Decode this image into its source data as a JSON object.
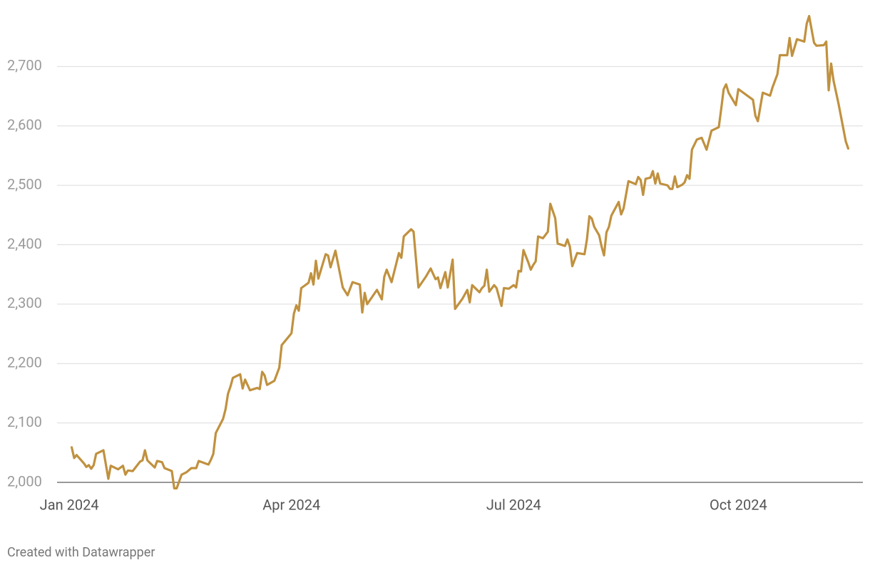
{
  "chart_data": {
    "type": "line",
    "credit": "Created with Datawrapper",
    "color": "#c0913f",
    "grid": true,
    "xlim": [
      -5,
      325
    ],
    "xticks": [
      {
        "value": 0,
        "label": "Jan 2024"
      },
      {
        "value": 91,
        "label": "Apr 2024"
      },
      {
        "value": 182,
        "label": "Jul 2024"
      },
      {
        "value": 274,
        "label": "Oct 2024"
      }
    ],
    "ylim": [
      2000,
      2800
    ],
    "yticks": [
      {
        "value": 2000,
        "label": "2,000"
      },
      {
        "value": 2100,
        "label": "2,100"
      },
      {
        "value": 2200,
        "label": "2,200"
      },
      {
        "value": 2300,
        "label": "2,300"
      },
      {
        "value": 2400,
        "label": "2,400"
      },
      {
        "value": 2500,
        "label": "2,500"
      },
      {
        "value": 2600,
        "label": "2,600"
      },
      {
        "value": 2700,
        "label": "2,700"
      }
    ],
    "x": [
      1,
      2,
      3,
      6,
      7,
      8,
      9,
      10,
      11,
      14,
      16,
      17,
      20,
      22,
      23,
      24,
      26,
      29,
      30,
      31,
      32,
      35,
      36,
      38,
      39,
      42,
      43,
      44,
      46,
      48,
      50,
      52,
      53,
      57,
      58,
      59,
      60,
      63,
      64,
      65,
      66,
      67,
      70,
      71,
      72,
      74,
      77,
      78,
      79,
      80,
      81,
      84,
      85,
      86,
      87,
      91,
      92,
      93,
      94,
      95,
      98,
      99,
      100,
      101,
      102,
      105,
      106,
      107,
      109,
      112,
      114,
      116,
      119,
      120,
      121,
      122,
      126,
      128,
      129,
      130,
      132,
      135,
      136,
      137,
      140,
      141,
      143,
      146,
      148,
      150,
      151,
      152,
      154,
      155,
      157,
      158,
      161,
      163,
      164,
      165,
      168,
      169,
      170,
      171,
      172,
      174,
      175,
      177,
      178,
      180,
      182,
      183,
      184,
      185,
      186,
      188,
      189,
      190,
      191,
      192,
      194,
      196,
      197,
      199,
      200,
      203,
      204,
      205,
      206,
      208,
      211,
      212,
      213,
      214,
      215,
      217,
      218,
      219,
      220,
      221,
      222,
      225,
      226,
      227,
      229,
      232,
      233,
      234,
      235,
      236,
      238,
      239,
      240,
      241,
      242,
      245,
      246,
      247,
      248,
      249,
      251,
      252,
      253,
      254,
      255,
      257,
      259,
      261,
      263,
      266,
      267,
      268,
      269,
      270,
      273,
      274,
      280,
      281,
      282,
      284,
      287,
      288,
      290,
      291,
      294,
      295,
      296,
      298,
      301,
      302,
      303,
      305,
      306,
      309,
      310,
      311,
      312,
      313,
      315,
      318,
      319
    ],
    "values": [
      2059,
      2041,
      2046,
      2032,
      2026,
      2029,
      2023,
      2029,
      2048,
      2054,
      2006,
      2028,
      2022,
      2028,
      2013,
      2020,
      2019,
      2035,
      2037,
      2054,
      2037,
      2025,
      2036,
      2034,
      2024,
      2019,
      1990,
      1990,
      2013,
      2017,
      2024,
      2024,
      2036,
      2030,
      2038,
      2048,
      2083,
      2107,
      2123,
      2149,
      2161,
      2176,
      2182,
      2158,
      2173,
      2155,
      2159,
      2157,
      2186,
      2180,
      2164,
      2171,
      2182,
      2193,
      2231,
      2251,
      2284,
      2298,
      2289,
      2327,
      2336,
      2352,
      2333,
      2373,
      2343,
      2384,
      2382,
      2362,
      2390,
      2328,
      2315,
      2337,
      2333,
      2286,
      2319,
      2300,
      2324,
      2308,
      2346,
      2358,
      2337,
      2386,
      2378,
      2414,
      2426,
      2422,
      2328,
      2346,
      2360,
      2342,
      2345,
      2327,
      2354,
      2328,
      2375,
      2292,
      2309,
      2324,
      2303,
      2332,
      2320,
      2327,
      2331,
      2358,
      2321,
      2332,
      2327,
      2297,
      2327,
      2326,
      2332,
      2328,
      2356,
      2355,
      2391,
      2370,
      2358,
      2366,
      2372,
      2414,
      2411,
      2422,
      2469,
      2445,
      2402,
      2398,
      2409,
      2397,
      2364,
      2386,
      2384,
      2409,
      2448,
      2444,
      2430,
      2416,
      2397,
      2382,
      2421,
      2430,
      2449,
      2472,
      2451,
      2461,
      2507,
      2502,
      2514,
      2509,
      2484,
      2511,
      2513,
      2524,
      2503,
      2520,
      2503,
      2500,
      2494,
      2494,
      2515,
      2497,
      2501,
      2505,
      2517,
      2511,
      2560,
      2577,
      2580,
      2560,
      2592,
      2598,
      2629,
      2662,
      2670,
      2656,
      2635,
      2662,
      2644,
      2617,
      2608,
      2656,
      2651,
      2665,
      2687,
      2719,
      2719,
      2748,
      2718,
      2746,
      2742,
      2772,
      2785,
      2740,
      2735,
      2736,
      2742,
      2660,
      2705,
      2676,
      2638,
      2574,
      2562
    ]
  }
}
